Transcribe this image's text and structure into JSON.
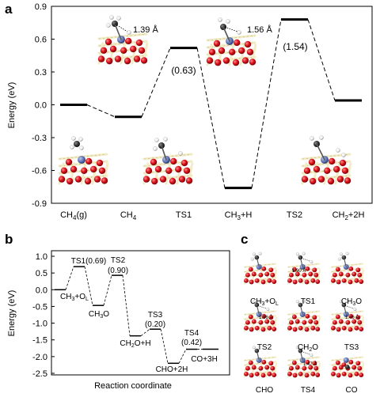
{
  "panel_labels": [
    "a",
    "b",
    "c"
  ],
  "chart_data": [
    {
      "panel": "a",
      "type": "line",
      "style": "energy-level-diagram",
      "ylabel": "Energy (eV)",
      "xlabel": "",
      "ylim": [
        -0.9,
        0.9
      ],
      "yticks": [
        0.9,
        0.6,
        0.3,
        0.0,
        -0.3,
        -0.6,
        -0.9
      ],
      "ytick_labels": [
        "0.9",
        "0.6",
        "0.3",
        "0.0",
        "-0.3",
        "-0.6",
        "-0.9"
      ],
      "states": [
        {
          "label": "CH4(g)",
          "energy": 0.0
        },
        {
          "label": "CH4",
          "energy": -0.11
        },
        {
          "label": "TS1",
          "energy": 0.52
        },
        {
          "label": "CH3+H",
          "energy": -0.76
        },
        {
          "label": "TS2",
          "energy": 0.78
        },
        {
          "label": "CH2+2H",
          "energy": 0.04
        }
      ],
      "barrier_labels": [
        {
          "state": "TS1",
          "text": "(0.63)"
        },
        {
          "state": "TS2",
          "text": "(1.54)"
        }
      ],
      "bond_labels": [
        {
          "state": "CH4",
          "text": "1.39 Å"
        },
        {
          "state": "CH3+H",
          "text": "1.56 Å"
        }
      ],
      "grid": false
    },
    {
      "panel": "b",
      "type": "line",
      "style": "energy-level-diagram",
      "ylabel": "Energy (eV)",
      "xlabel": "Reaction coordinate",
      "ylim": [
        -2.5,
        1.0
      ],
      "yticks": [
        1.0,
        0.5,
        0.0,
        -0.5,
        -1.0,
        -1.5,
        -2.0,
        -2.5
      ],
      "ytick_labels": [
        "1.0",
        "0.5",
        "0.0",
        "-0.5",
        "-1.0",
        "-1.5",
        "-2.0",
        "-2.5"
      ],
      "states": [
        {
          "label": "CH3+OL",
          "energy": 0.0
        },
        {
          "label": "TS1(0.69)",
          "energy": 0.69
        },
        {
          "label": "CH3O",
          "energy": -0.47
        },
        {
          "label": "TS2 (0.90)",
          "energy": 0.43
        },
        {
          "label": "CH2O+H",
          "energy": -1.38
        },
        {
          "label": "TS3 (0.20)",
          "energy": -1.18
        },
        {
          "label": "CHO+2H",
          "energy": -2.2
        },
        {
          "label": "TS4 (0.42)",
          "energy": -1.78
        },
        {
          "label": "CO+3H",
          "energy": -1.78
        }
      ],
      "grid": false
    }
  ],
  "panel_a_labels": {
    "x": [
      "CH4(g)",
      "CH4",
      "TS1",
      "CH3+H",
      "TS2",
      "CH2+2H"
    ],
    "bond1": "1.39 Å",
    "bond2": "1.56 Å",
    "barrier1": "(0.63)",
    "barrier2": "(1.54)"
  },
  "panel_b_labels": {
    "ts1": "TS1(0.69)",
    "ts2": "TS2",
    "ts2_val": "(0.90)",
    "ts3": "TS3",
    "ts3_val": "(0.20)",
    "ts4": "TS4",
    "ts4_val": "(0.42)",
    "ch3_ol": "CH3+OL",
    "ch3o": "CH3O",
    "ch2o_h": "CH2O+H",
    "cho_2h": "CHO+2H",
    "co_3h": "CO+3H",
    "xlabel": "Reaction coordinate",
    "ylabel": "Energy (eV)"
  },
  "panel_c": {
    "captions": [
      "CH3+OL",
      "TS1",
      "CH3O",
      "TS2",
      "CH2O",
      "TS3",
      "CHO",
      "TS4",
      "CO"
    ],
    "bond_labels": [
      "1.90 Å",
      "1.56 Å",
      "1.46 Å",
      "1.47 Å"
    ]
  },
  "colors": {
    "oxygen": "#d8101a",
    "oxygen_dark": "#8a0a10",
    "cerium": "#f2ecc6",
    "cerium_edge": "#b9ad7a",
    "metal": "#6578b8",
    "carbon": "#303030",
    "hydrogen": "#ffffff"
  }
}
